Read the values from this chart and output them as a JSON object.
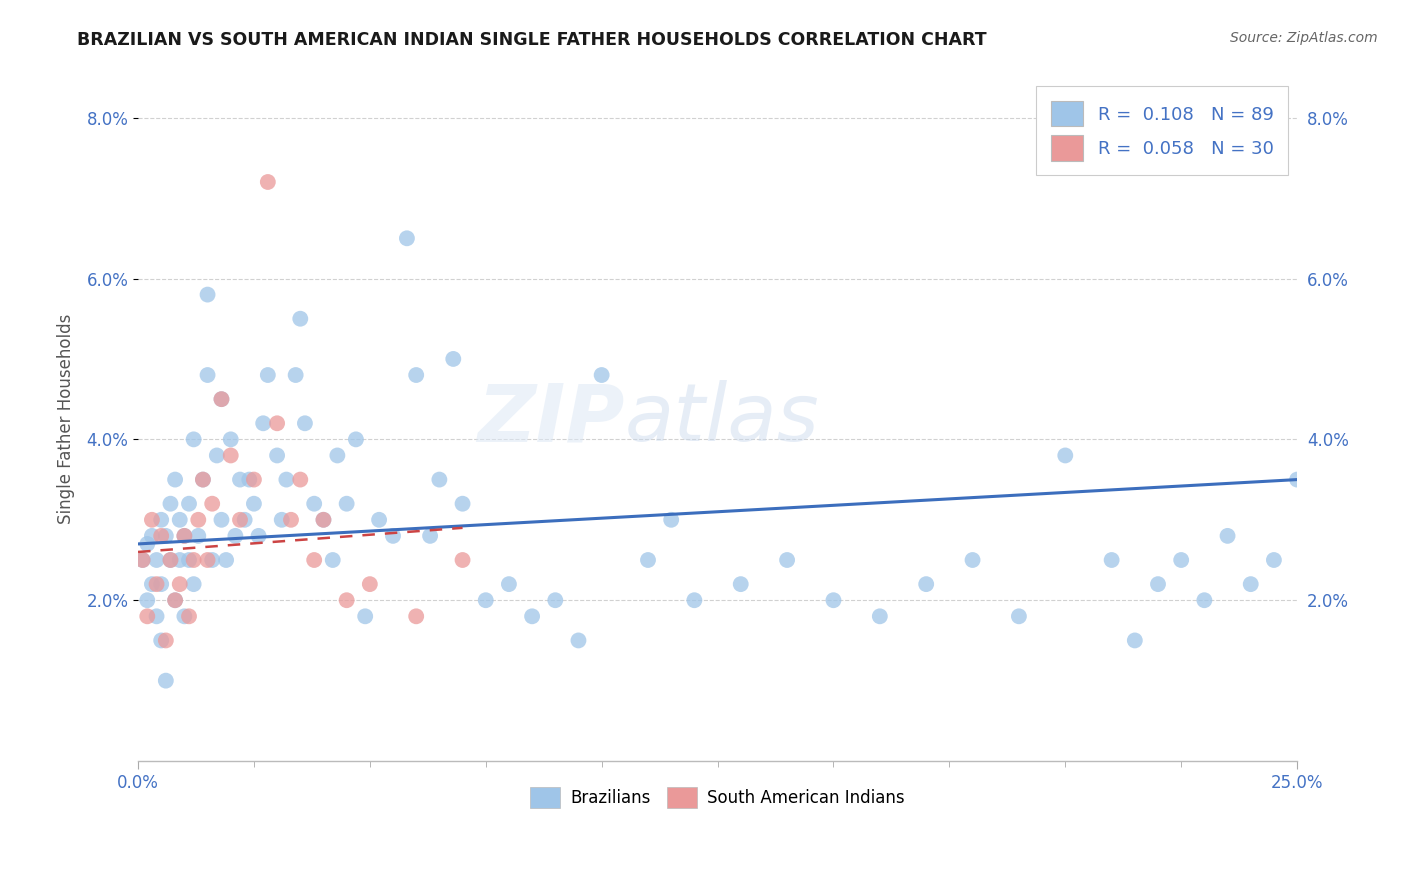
{
  "title": "BRAZILIAN VS SOUTH AMERICAN INDIAN SINGLE FATHER HOUSEHOLDS CORRELATION CHART",
  "source": "Source: ZipAtlas.com",
  "ylabel": "Single Father Households",
  "xlim": [
    0.0,
    0.25
  ],
  "ylim": [
    0.0,
    0.085
  ],
  "y_ticks": [
    0.02,
    0.04,
    0.06,
    0.08
  ],
  "y_tick_labels": [
    "2.0%",
    "4.0%",
    "6.0%",
    "8.0%"
  ],
  "x_tick_labels": [
    "0.0%",
    "25.0%"
  ],
  "blue_color": "#9fc5e8",
  "pink_color": "#ea9999",
  "blue_line_color": "#3c6ebd",
  "pink_line_color": "#cc4444",
  "grid_color": "#cccccc",
  "background_color": "#ffffff",
  "tick_color": "#4472c4",
  "brazilians_x": [
    0.001,
    0.002,
    0.002,
    0.003,
    0.003,
    0.004,
    0.004,
    0.005,
    0.005,
    0.005,
    0.006,
    0.006,
    0.007,
    0.007,
    0.008,
    0.008,
    0.009,
    0.009,
    0.01,
    0.01,
    0.011,
    0.011,
    0.012,
    0.012,
    0.013,
    0.014,
    0.015,
    0.015,
    0.016,
    0.017,
    0.018,
    0.018,
    0.019,
    0.02,
    0.021,
    0.022,
    0.023,
    0.024,
    0.025,
    0.026,
    0.027,
    0.028,
    0.03,
    0.031,
    0.032,
    0.034,
    0.035,
    0.036,
    0.038,
    0.04,
    0.042,
    0.043,
    0.045,
    0.047,
    0.049,
    0.052,
    0.055,
    0.058,
    0.06,
    0.063,
    0.065,
    0.068,
    0.07,
    0.075,
    0.08,
    0.085,
    0.09,
    0.095,
    0.1,
    0.11,
    0.115,
    0.12,
    0.13,
    0.14,
    0.15,
    0.16,
    0.17,
    0.18,
    0.19,
    0.2,
    0.21,
    0.215,
    0.22,
    0.225,
    0.23,
    0.235,
    0.24,
    0.245,
    0.25
  ],
  "brazilians_y": [
    0.025,
    0.02,
    0.027,
    0.022,
    0.028,
    0.018,
    0.025,
    0.015,
    0.022,
    0.03,
    0.01,
    0.028,
    0.025,
    0.032,
    0.02,
    0.035,
    0.025,
    0.03,
    0.018,
    0.028,
    0.025,
    0.032,
    0.022,
    0.04,
    0.028,
    0.035,
    0.048,
    0.058,
    0.025,
    0.038,
    0.03,
    0.045,
    0.025,
    0.04,
    0.028,
    0.035,
    0.03,
    0.035,
    0.032,
    0.028,
    0.042,
    0.048,
    0.038,
    0.03,
    0.035,
    0.048,
    0.055,
    0.042,
    0.032,
    0.03,
    0.025,
    0.038,
    0.032,
    0.04,
    0.018,
    0.03,
    0.028,
    0.065,
    0.048,
    0.028,
    0.035,
    0.05,
    0.032,
    0.02,
    0.022,
    0.018,
    0.02,
    0.015,
    0.048,
    0.025,
    0.03,
    0.02,
    0.022,
    0.025,
    0.02,
    0.018,
    0.022,
    0.025,
    0.018,
    0.038,
    0.025,
    0.015,
    0.022,
    0.025,
    0.02,
    0.028,
    0.022,
    0.025,
    0.035
  ],
  "sa_indians_x": [
    0.001,
    0.002,
    0.003,
    0.004,
    0.005,
    0.006,
    0.007,
    0.008,
    0.009,
    0.01,
    0.011,
    0.012,
    0.013,
    0.014,
    0.015,
    0.016,
    0.018,
    0.02,
    0.022,
    0.025,
    0.028,
    0.03,
    0.033,
    0.035,
    0.038,
    0.04,
    0.045,
    0.05,
    0.06,
    0.07
  ],
  "sa_indians_y": [
    0.025,
    0.018,
    0.03,
    0.022,
    0.028,
    0.015,
    0.025,
    0.02,
    0.022,
    0.028,
    0.018,
    0.025,
    0.03,
    0.035,
    0.025,
    0.032,
    0.045,
    0.038,
    0.03,
    0.035,
    0.072,
    0.042,
    0.03,
    0.035,
    0.025,
    0.03,
    0.02,
    0.022,
    0.018,
    0.025
  ],
  "blue_line_x0": 0.0,
  "blue_line_y0": 0.027,
  "blue_line_x1": 0.25,
  "blue_line_y1": 0.035,
  "pink_line_x0": 0.0,
  "pink_line_y0": 0.026,
  "pink_line_x1": 0.07,
  "pink_line_y1": 0.029
}
